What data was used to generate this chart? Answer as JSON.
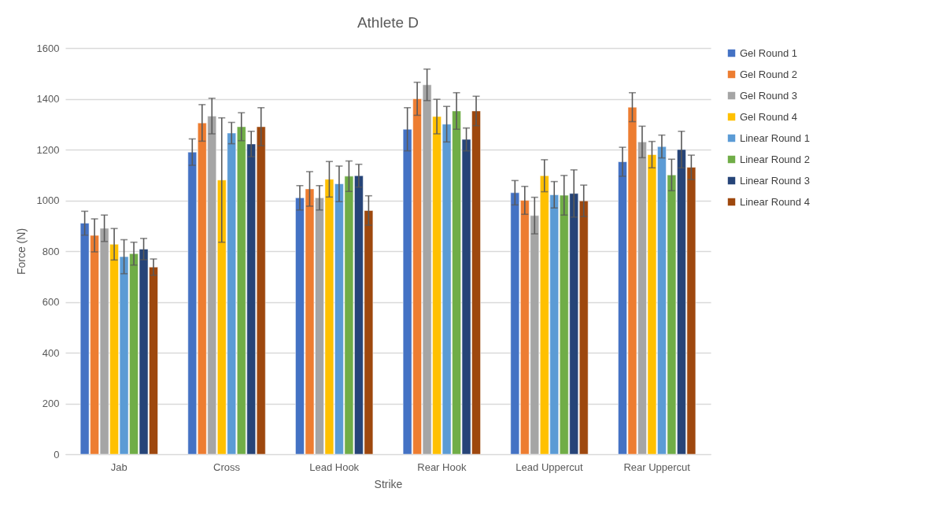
{
  "chart_data": {
    "type": "bar",
    "title": "Athlete D",
    "xlabel": "Strike",
    "ylabel": "Force (N)",
    "categories": [
      "Jab",
      "Cross",
      "Lead Hook",
      "Rear Hook",
      "Lead Uppercut",
      "Rear Uppercut"
    ],
    "ylim": [
      0,
      1600
    ],
    "yticks": [
      0,
      200,
      400,
      600,
      800,
      1000,
      1200,
      1400,
      1600
    ],
    "grid": "y",
    "legend": "right",
    "series": [
      {
        "name": "Gel Round 1",
        "color": "#4472c4",
        "values": [
          910,
          1190,
          1010,
          1280,
          1030,
          1152
        ],
        "errors": [
          47,
          52,
          48,
          85,
          48,
          57
        ]
      },
      {
        "name": "Gel Round 2",
        "color": "#ed7d31",
        "values": [
          862,
          1305,
          1045,
          1400,
          1000,
          1367
        ],
        "errors": [
          65,
          72,
          68,
          65,
          55,
          57
        ]
      },
      {
        "name": "Gel Round 3",
        "color": "#a5a5a5",
        "values": [
          890,
          1332,
          1010,
          1455,
          940,
          1230
        ],
        "errors": [
          52,
          70,
          48,
          62,
          72,
          62
        ]
      },
      {
        "name": "Gel Round 4",
        "color": "#ffc000",
        "values": [
          827,
          1080,
          1083,
          1330,
          1097,
          1180
        ],
        "errors": [
          62,
          245,
          70,
          68,
          63,
          52
        ]
      },
      {
        "name": "Linear Round 1",
        "color": "#5b9bd5",
        "values": [
          778,
          1265,
          1065,
          1300,
          1022,
          1212
        ],
        "errors": [
          67,
          42,
          70,
          70,
          52,
          45
        ]
      },
      {
        "name": "Linear Round 2",
        "color": "#70ad47",
        "values": [
          790,
          1290,
          1095,
          1352,
          1020,
          1100
        ],
        "errors": [
          45,
          55,
          60,
          72,
          78,
          62
        ]
      },
      {
        "name": "Linear Round 3",
        "color": "#264478",
        "values": [
          808,
          1222,
          1097,
          1240,
          1027,
          1200
        ],
        "errors": [
          42,
          50,
          45,
          45,
          93,
          72
        ]
      },
      {
        "name": "Linear Round 4",
        "color": "#9e480e",
        "values": [
          737,
          1290,
          960,
          1352,
          998,
          1130
        ],
        "errors": [
          32,
          75,
          58,
          58,
          62,
          48
        ]
      }
    ]
  }
}
